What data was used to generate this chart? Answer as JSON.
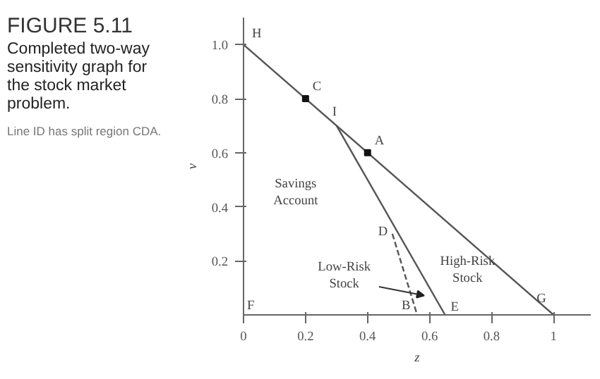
{
  "chart_data": {
    "type": "line",
    "title": "FIGURE 5.11",
    "subtitle": "Completed two-way sensitivity graph for the stock market problem.",
    "xlabel": "z",
    "ylabel": "v",
    "xlim": [
      0,
      1.12
    ],
    "ylim": [
      0,
      1.1
    ],
    "xticks": [
      {
        "value": 0,
        "label": "0"
      },
      0.2,
      0.4,
      0.6,
      0.8,
      {
        "value": 1,
        "label": "1"
      }
    ],
    "yticks": [
      0.2,
      0.4,
      0.6,
      0.8,
      {
        "value": 1,
        "label": "1.0"
      }
    ],
    "grid": false,
    "series": [
      {
        "color": "#555555",
        "line_style": "solid",
        "marker": "none",
        "x": [
          0,
          1
        ],
        "values": [
          1,
          0
        ]
      },
      {
        "color": "#555555",
        "line_style": "solid",
        "marker": "none",
        "x": [
          0.3,
          0.65
        ],
        "values": [
          0.7,
          0
        ]
      },
      {
        "color": "#555555",
        "line_style": "dashed",
        "marker": "none",
        "x": [
          0.48,
          0.56
        ],
        "values": [
          0.3,
          0
        ]
      },
      {
        "type": "scatter",
        "color": "#111111",
        "marker": "square",
        "x": [
          0.2,
          0.4
        ],
        "values": [
          0.8,
          0.6
        ]
      }
    ],
    "annotations": [
      "Line ID has split region CDA.",
      {
        "text": "H",
        "x": 0,
        "y": 1
      },
      {
        "text": "C",
        "x": 0.2,
        "y": 0.8
      },
      {
        "text": "I",
        "x": 0.3,
        "y": 0.7
      },
      {
        "text": "A",
        "x": 0.4,
        "y": 0.6
      },
      {
        "text": "D",
        "x": 0.48,
        "y": 0.3
      },
      "F",
      {
        "text": "B",
        "x": 0.56,
        "y": 0
      },
      {
        "text": "E",
        "x": 0.65,
        "y": 0
      },
      {
        "text": "G",
        "x": 1,
        "y": 0
      },
      "Savings\nAccount",
      "High-Risk\nStock",
      "Low-Risk\nStock"
    ]
  }
}
